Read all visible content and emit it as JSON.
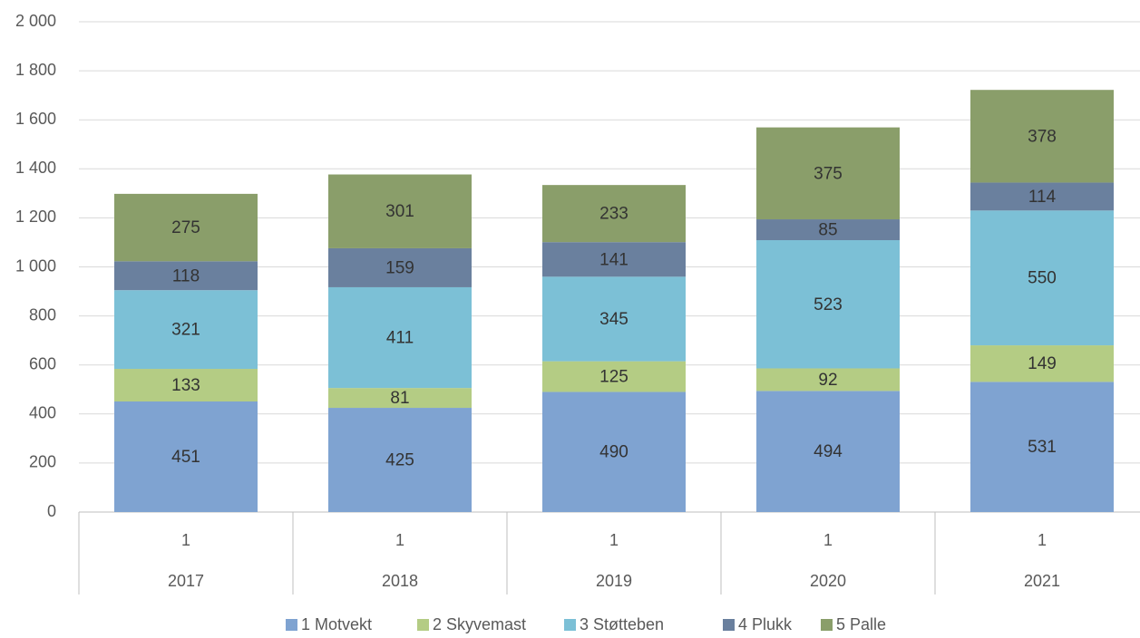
{
  "chart_data": {
    "type": "stacked_bar",
    "categories": [
      "2017",
      "2018",
      "2019",
      "2020",
      "2021"
    ],
    "subcategories": [
      "1",
      "1",
      "1",
      "1",
      "1"
    ],
    "series": [
      {
        "name": "1 Motvekt",
        "color": "#7fa3d1",
        "values": [
          451,
          425,
          490,
          494,
          531
        ]
      },
      {
        "name": "2 Skyvemast",
        "color": "#b4cc84",
        "values": [
          133,
          81,
          125,
          92,
          149
        ]
      },
      {
        "name": "3 Støtteben",
        "color": "#7cc0d6",
        "values": [
          321,
          411,
          345,
          523,
          550
        ]
      },
      {
        "name": "4 Plukk",
        "color": "#6a809e",
        "values": [
          118,
          159,
          141,
          85,
          114
        ]
      },
      {
        "name": "5 Palle",
        "color": "#8a9e6a",
        "values": [
          275,
          301,
          233,
          375,
          378
        ]
      }
    ],
    "ylim": [
      0,
      2000
    ],
    "yticks": [
      0,
      200,
      400,
      600,
      800,
      {
        "value": 1000,
        "label": "1 000"
      },
      {
        "value": 1200,
        "label": "1 200"
      },
      {
        "value": 1400,
        "label": "1 400"
      },
      {
        "value": 1600,
        "label": "1 600"
      },
      {
        "value": 1800,
        "label": "1 800"
      },
      {
        "value": 2000,
        "label": "2 000"
      }
    ],
    "grid": true,
    "legend": "bottom"
  }
}
